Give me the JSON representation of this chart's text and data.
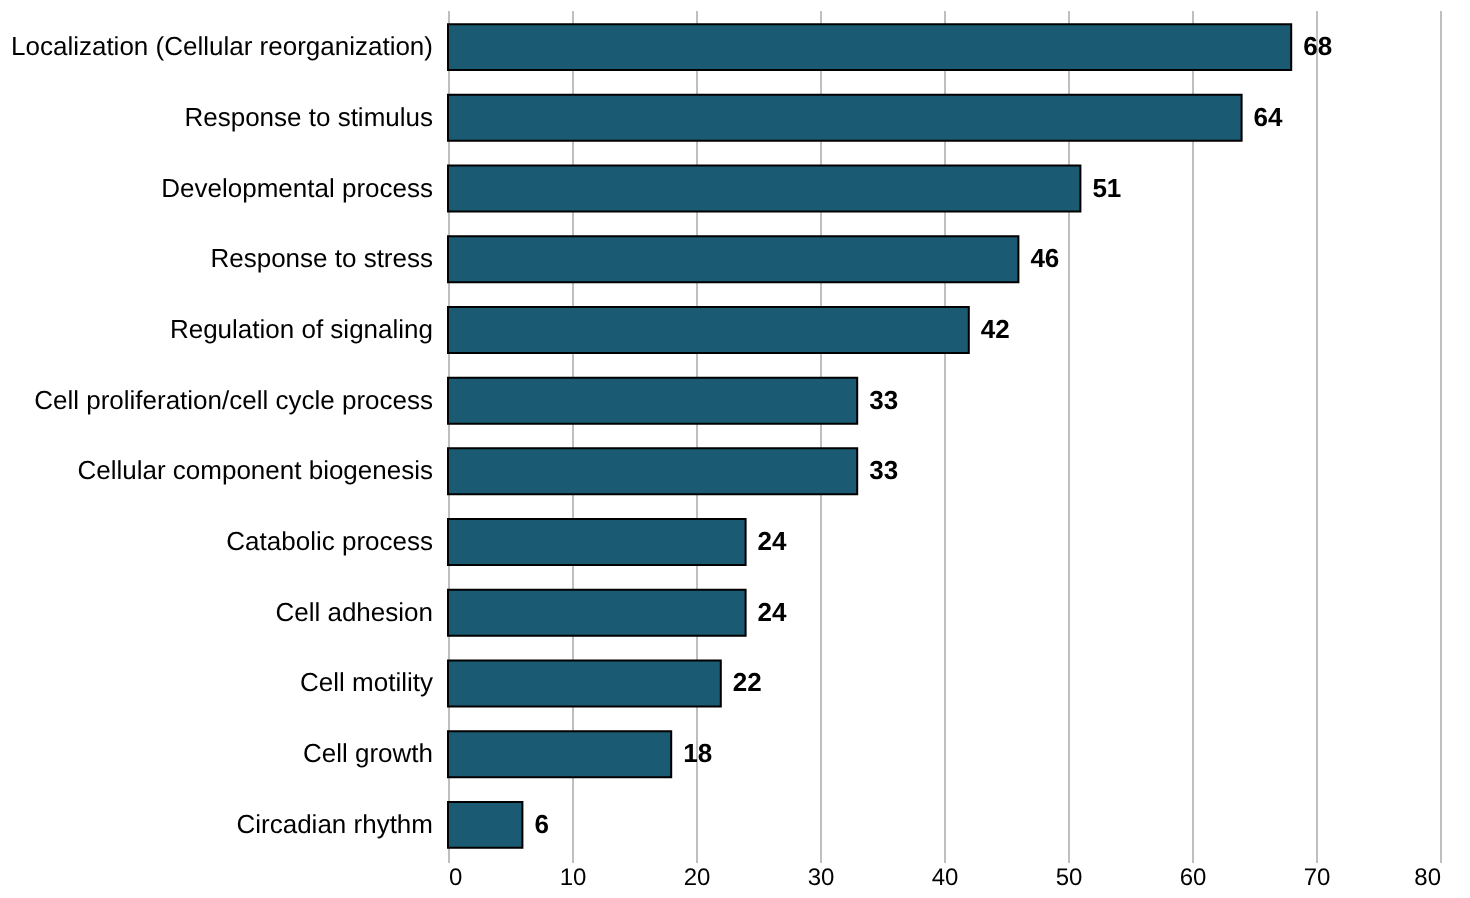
{
  "chart_data": {
    "type": "bar",
    "orientation": "horizontal",
    "categories": [
      "Localization (Cellular reorganization)",
      "Response to stimulus",
      "Developmental process",
      "Response to stress",
      "Regulation of signaling",
      "Cell proliferation/cell cycle process",
      "Cellular component biogenesis",
      "Catabolic process",
      "Cell adhesion",
      "Cell motility",
      "Cell growth",
      "Circadian rhythm"
    ],
    "values": [
      68,
      64,
      51,
      46,
      42,
      33,
      33,
      24,
      24,
      22,
      18,
      6
    ],
    "color": "#1a5a72",
    "xlim": [
      0,
      80
    ],
    "xticks": [
      0,
      10,
      20,
      30,
      40,
      50,
      60,
      70,
      80
    ],
    "grid": "x",
    "data_labels": true
  }
}
